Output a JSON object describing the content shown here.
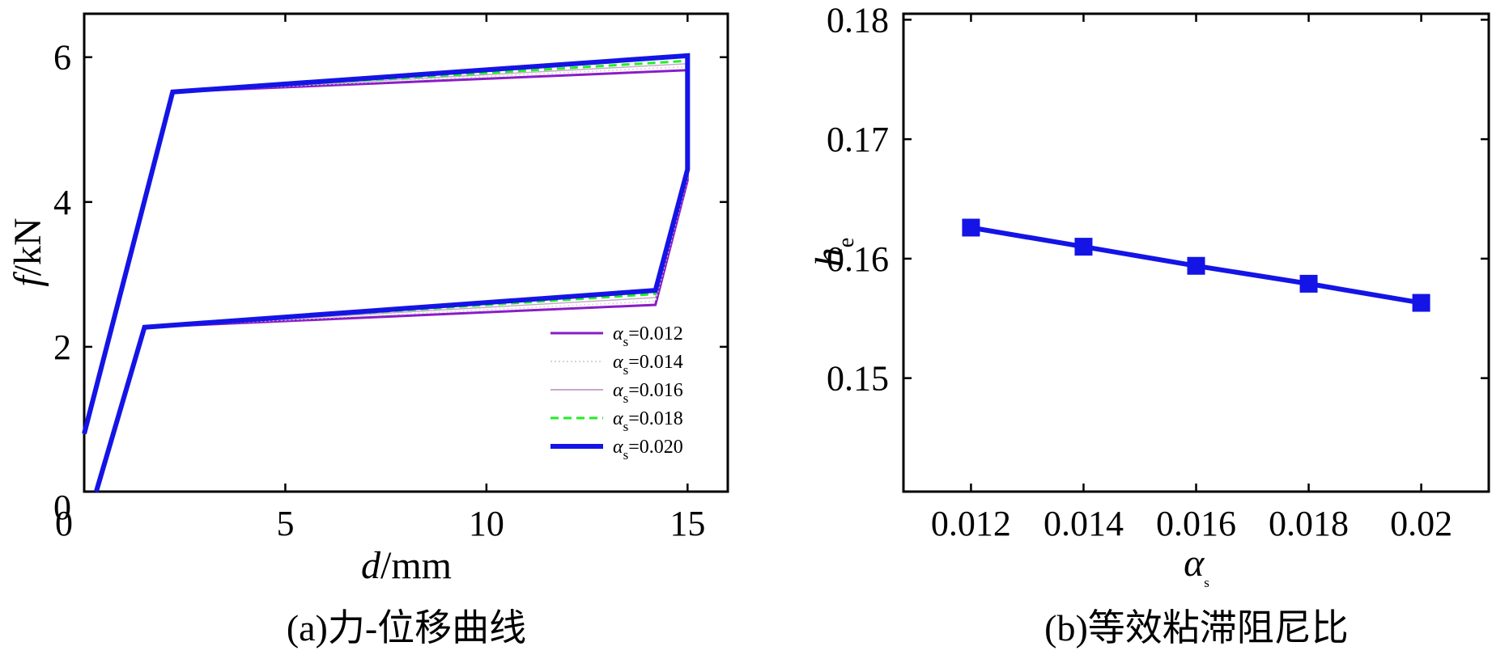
{
  "chart_data": [
    {
      "type": "line",
      "xlabel": {
        "var": "d",
        "unit": "/mm"
      },
      "ylabel": {
        "var": "f",
        "unit": "/kN"
      },
      "xlim": [
        0,
        16
      ],
      "ylim": [
        0,
        6.6
      ],
      "xticks": [
        0,
        5,
        10,
        15
      ],
      "yticks": [
        0,
        2,
        4,
        6
      ],
      "xtick_labels": [
        "0",
        "5",
        "10",
        "15"
      ],
      "ytick_labels": [
        "0",
        "2",
        "4",
        "6"
      ],
      "caption": "(a)力-位移曲线",
      "legend_position": "bottom-right",
      "series": [
        {
          "name": "αs=0.012",
          "symbol": "α",
          "sub": "s",
          "value": "=0.012",
          "color": "#8a1cc8",
          "style": "solid",
          "width": 3,
          "x": [
            0,
            2.2,
            15,
            15,
            14.2,
            1.5,
            0.3
          ],
          "y": [
            0.8,
            5.52,
            5.82,
            4.3,
            2.58,
            2.27,
            0
          ]
        },
        {
          "name": "αs=0.014",
          "symbol": "α",
          "sub": "s",
          "value": "=0.014",
          "color": "#d4d4d4",
          "style": "dotted",
          "width": 1.5,
          "x": [
            0,
            2.2,
            15,
            15,
            14.2,
            1.5,
            0.3
          ],
          "y": [
            0.8,
            5.52,
            5.87,
            4.33,
            2.63,
            2.27,
            0
          ]
        },
        {
          "name": "αs=0.016",
          "symbol": "α",
          "sub": "s",
          "value": "=0.016",
          "color": "#c8a8c8",
          "style": "solid",
          "width": 1.5,
          "x": [
            0,
            2.2,
            15,
            15,
            14.2,
            1.5,
            0.3
          ],
          "y": [
            0.8,
            5.52,
            5.91,
            4.36,
            2.68,
            2.27,
            0
          ]
        },
        {
          "name": "αs=0.018",
          "symbol": "α",
          "sub": "s",
          "value": "=0.018",
          "color": "#22ee22",
          "style": "dashed",
          "width": 3,
          "x": [
            0,
            2.2,
            15,
            15,
            14.2,
            1.5,
            0.3
          ],
          "y": [
            0.8,
            5.52,
            5.95,
            4.4,
            2.73,
            2.27,
            0
          ]
        },
        {
          "name": "αs=0.020",
          "symbol": "α",
          "sub": "s",
          "value": "=0.020",
          "color": "#1414e6",
          "style": "solid",
          "width": 6,
          "x": [
            0,
            2.2,
            15,
            15,
            14.2,
            1.5,
            0.3
          ],
          "y": [
            0.8,
            5.52,
            6.02,
            4.45,
            2.78,
            2.27,
            0
          ]
        }
      ]
    },
    {
      "type": "line",
      "xlabel": {
        "var": "α",
        "sub": "s"
      },
      "ylabel": {
        "var": "h",
        "sub": "e"
      },
      "xlim": [
        0.0108,
        0.0212
      ],
      "ylim": [
        0.1405,
        0.1805
      ],
      "xticks": [
        0.012,
        0.014,
        0.016,
        0.018,
        0.02
      ],
      "yticks": [
        0.15,
        0.16,
        0.17,
        0.18
      ],
      "xtick_labels": [
        "0.012",
        "0.014",
        "0.016",
        "0.018",
        "0.02"
      ],
      "ytick_labels": [
        "0.15",
        "0.16",
        "0.17",
        "0.18"
      ],
      "caption": "(b)等效粘滞阻尼比",
      "series": [
        {
          "color": "#1414e6",
          "marker": "square",
          "x": [
            0.012,
            0.014,
            0.016,
            0.018,
            0.02
          ],
          "y": [
            0.1626,
            0.161,
            0.1594,
            0.1579,
            0.1563
          ]
        }
      ]
    }
  ]
}
